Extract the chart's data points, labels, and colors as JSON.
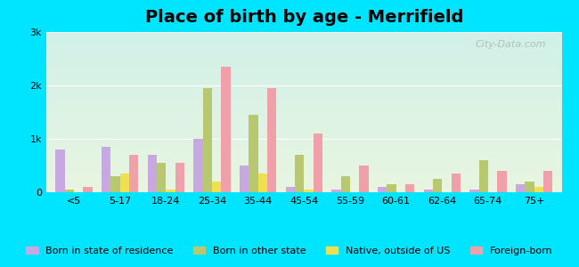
{
  "title": "Place of birth by age - Merrifield",
  "categories": [
    "<5",
    "5-17",
    "18-24",
    "25-34",
    "35-44",
    "45-54",
    "55-59",
    "60-61",
    "62-64",
    "65-74",
    "75+"
  ],
  "series": {
    "Born in state of residence": [
      800,
      850,
      700,
      1000,
      500,
      100,
      50,
      100,
      50,
      50,
      150
    ],
    "Born in other state": [
      50,
      300,
      550,
      1950,
      1450,
      700,
      300,
      150,
      250,
      600,
      200
    ],
    "Native, outside of US": [
      0,
      350,
      50,
      200,
      350,
      50,
      0,
      0,
      0,
      0,
      100
    ],
    "Foreign-born": [
      100,
      700,
      550,
      2350,
      1950,
      1100,
      500,
      150,
      350,
      400,
      400
    ]
  },
  "colors": {
    "Born in state of residence": "#c8a8e0",
    "Born in other state": "#b8c870",
    "Native, outside of US": "#f0e050",
    "Foreign-born": "#f0a0a8"
  },
  "ylim": [
    0,
    3000
  ],
  "yticks": [
    0,
    1000,
    2000,
    3000
  ],
  "ytick_labels": [
    "0",
    "1k",
    "2k",
    "3k"
  ],
  "bg_color_top": "#e8f5e0",
  "bg_color_bottom": "#d0f0e8",
  "outer_bg": "#00e5ff",
  "watermark": "City-Data.com",
  "bar_width": 0.2,
  "legend_fontsize": 8,
  "title_fontsize": 14
}
